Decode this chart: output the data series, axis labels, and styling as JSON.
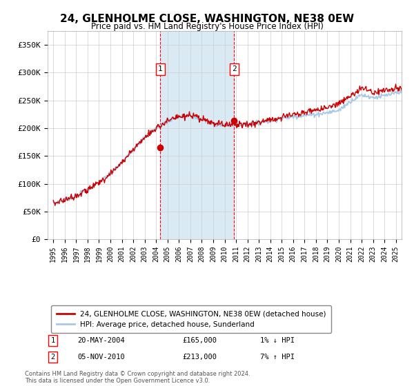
{
  "title": "24, GLENHOLME CLOSE, WASHINGTON, NE38 0EW",
  "subtitle": "Price paid vs. HM Land Registry's House Price Index (HPI)",
  "ylabel_ticks": [
    "£0",
    "£50K",
    "£100K",
    "£150K",
    "£200K",
    "£250K",
    "£300K",
    "£350K"
  ],
  "ytick_values": [
    0,
    50000,
    100000,
    150000,
    200000,
    250000,
    300000,
    350000
  ],
  "ylim": [
    0,
    375000
  ],
  "xlim_start": 1994.5,
  "xlim_end": 2025.5,
  "sale1_x": 2004.38,
  "sale1_y": 165000,
  "sale1_label": "1",
  "sale1_date": "20-MAY-2004",
  "sale1_price": "£165,000",
  "sale1_hpi": "1% ↓ HPI",
  "sale2_x": 2010.84,
  "sale2_y": 213000,
  "sale2_label": "2",
  "sale2_date": "05-NOV-2010",
  "sale2_price": "£213,000",
  "sale2_hpi": "7% ↑ HPI",
  "hpi_color": "#a8c8e8",
  "sale_color": "#cc0000",
  "highlight_color": "#daeaf5",
  "grid_color": "#cccccc",
  "footer_text": "Contains HM Land Registry data © Crown copyright and database right 2024.\nThis data is licensed under the Open Government Licence v3.0.",
  "legend1_label": "24, GLENHOLME CLOSE, WASHINGTON, NE38 0EW (detached house)",
  "legend2_label": "HPI: Average price, detached house, Sunderland"
}
